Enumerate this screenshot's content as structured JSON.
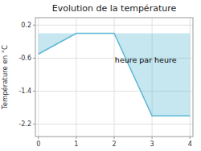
{
  "chart_data": {
    "type": "area",
    "title": "Evolution de la température",
    "ylabel": "Température en °C",
    "annotation": "heure par heure",
    "x": [
      0,
      1,
      2,
      3,
      4
    ],
    "values": [
      -0.5,
      0.0,
      0.0,
      -2.0,
      -2.0
    ],
    "color": "#5bb8d4",
    "xlim": [
      -0.08,
      4.08
    ],
    "ylim": [
      -2.5,
      0.38
    ],
    "xticks": [
      0,
      1,
      2,
      3,
      4
    ],
    "yticks": [
      0.2,
      -0.6,
      -1.4,
      -2.2
    ],
    "grid": true
  }
}
